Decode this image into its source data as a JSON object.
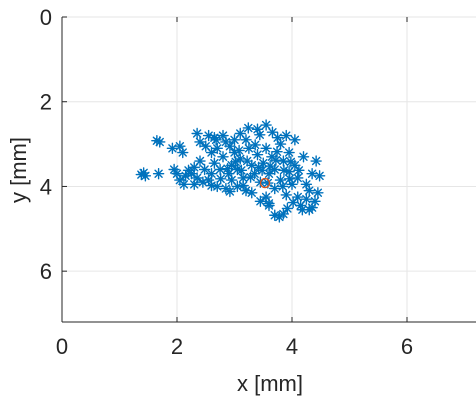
{
  "chart_data": {
    "type": "scatter",
    "xlabel": "x [mm]",
    "ylabel": "y [mm]",
    "xlim": [
      0,
      7.2
    ],
    "ylim": [
      0,
      7.2
    ],
    "y_reversed": true,
    "x_ticks": [
      "0",
      "2",
      "4",
      "6"
    ],
    "y_ticks": [
      "0",
      "2",
      "4",
      "6"
    ],
    "x_tick_values": [
      0,
      2,
      4,
      6
    ],
    "y_tick_values": [
      0,
      2,
      4,
      6
    ],
    "grid": true,
    "colors": {
      "series": "#0072BD",
      "reference": "#D95319",
      "grid": "#e6e6e6",
      "axis": "#262626"
    },
    "series": [
      {
        "marker": "asterisk",
        "color": "#0072BD",
        "points": [
          [
            1.38,
            3.72
          ],
          [
            1.45,
            3.75
          ],
          [
            1.42,
            3.68
          ],
          [
            1.68,
            3.7
          ],
          [
            1.65,
            2.92
          ],
          [
            1.7,
            2.95
          ],
          [
            1.92,
            3.1
          ],
          [
            2.05,
            3.05
          ],
          [
            2.1,
            3.2
          ],
          [
            1.95,
            3.6
          ],
          [
            2.0,
            3.7
          ],
          [
            2.15,
            3.75
          ],
          [
            2.05,
            3.85
          ],
          [
            2.2,
            3.62
          ],
          [
            2.3,
            3.55
          ],
          [
            2.4,
            3.4
          ],
          [
            2.35,
            3.8
          ],
          [
            2.45,
            3.9
          ],
          [
            2.3,
            3.95
          ],
          [
            2.55,
            3.85
          ],
          [
            2.6,
            3.7
          ],
          [
            2.5,
            3.05
          ],
          [
            2.4,
            2.95
          ],
          [
            2.65,
            2.85
          ],
          [
            2.35,
            2.75
          ],
          [
            2.55,
            2.8
          ],
          [
            2.6,
            3.2
          ],
          [
            2.65,
            3.45
          ],
          [
            2.7,
            3.1
          ],
          [
            2.75,
            3.6
          ],
          [
            2.8,
            3.3
          ],
          [
            2.85,
            2.95
          ],
          [
            2.8,
            2.8
          ],
          [
            2.9,
            3.7
          ],
          [
            2.95,
            3.5
          ],
          [
            2.7,
            4.0
          ],
          [
            2.85,
            4.05
          ],
          [
            2.95,
            3.85
          ],
          [
            3.0,
            3.2
          ],
          [
            3.0,
            2.9
          ],
          [
            3.05,
            3.6
          ],
          [
            3.1,
            3.35
          ],
          [
            3.05,
            4.0
          ],
          [
            3.15,
            3.8
          ],
          [
            3.1,
            2.75
          ],
          [
            3.2,
            2.9
          ],
          [
            3.25,
            3.1
          ],
          [
            3.3,
            3.5
          ],
          [
            3.35,
            3.7
          ],
          [
            3.2,
            4.1
          ],
          [
            3.3,
            4.15
          ],
          [
            3.4,
            3.25
          ],
          [
            3.4,
            2.65
          ],
          [
            3.55,
            2.55
          ],
          [
            3.45,
            3.9
          ],
          [
            3.5,
            3.45
          ],
          [
            3.55,
            3.1
          ],
          [
            3.6,
            3.7
          ],
          [
            3.55,
            4.25
          ],
          [
            3.6,
            4.45
          ],
          [
            3.65,
            3.3
          ],
          [
            3.7,
            3.6
          ],
          [
            3.7,
            4.05
          ],
          [
            3.75,
            2.85
          ],
          [
            3.8,
            3.0
          ],
          [
            3.85,
            3.4
          ],
          [
            3.8,
            3.85
          ],
          [
            3.7,
            4.68
          ],
          [
            3.78,
            4.72
          ],
          [
            3.85,
            4.65
          ],
          [
            3.9,
            2.8
          ],
          [
            3.95,
            3.2
          ],
          [
            3.95,
            3.65
          ],
          [
            3.9,
            4.2
          ],
          [
            4.0,
            3.95
          ],
          [
            4.05,
            3.5
          ],
          [
            4.05,
            2.9
          ],
          [
            4.1,
            3.8
          ],
          [
            4.1,
            4.25
          ],
          [
            4.15,
            4.45
          ],
          [
            4.2,
            3.3
          ],
          [
            4.25,
            3.95
          ],
          [
            4.25,
            4.3
          ],
          [
            4.3,
            4.55
          ],
          [
            4.3,
            4.1
          ],
          [
            4.35,
            3.7
          ],
          [
            4.4,
            4.35
          ],
          [
            4.45,
            4.15
          ],
          [
            4.48,
            3.75
          ],
          [
            4.42,
            3.4
          ],
          [
            4.35,
            4.5
          ],
          [
            4.18,
            4.55
          ],
          [
            4.02,
            4.38
          ],
          [
            3.92,
            4.52
          ],
          [
            3.6,
            4.4
          ],
          [
            3.45,
            4.35
          ],
          [
            3.15,
            3.98
          ],
          [
            2.92,
            4.12
          ],
          [
            2.6,
            3.98
          ],
          [
            2.48,
            3.6
          ],
          [
            2.25,
            3.7
          ],
          [
            2.12,
            3.95
          ],
          [
            2.68,
            2.9
          ],
          [
            2.92,
            3.05
          ],
          [
            3.08,
            3.15
          ],
          [
            3.22,
            3.4
          ],
          [
            3.36,
            3.02
          ],
          [
            3.48,
            3.62
          ],
          [
            3.62,
            3.52
          ],
          [
            3.74,
            3.18
          ],
          [
            3.86,
            3.62
          ],
          [
            3.98,
            3.42
          ],
          [
            3.66,
            2.72
          ],
          [
            3.44,
            2.78
          ],
          [
            3.24,
            2.62
          ],
          [
            3.02,
            3.42
          ],
          [
            2.88,
            3.58
          ],
          [
            2.76,
            3.82
          ],
          [
            3.12,
            3.62
          ],
          [
            3.28,
            3.78
          ],
          [
            3.42,
            3.55
          ],
          [
            3.58,
            3.92
          ],
          [
            3.72,
            3.38
          ],
          [
            3.84,
            4.0
          ],
          [
            3.96,
            3.82
          ],
          [
            4.12,
            3.62
          ]
        ]
      },
      {
        "marker": "circle",
        "color": "#D95319",
        "points": [
          [
            3.53,
            3.92
          ]
        ]
      }
    ]
  }
}
